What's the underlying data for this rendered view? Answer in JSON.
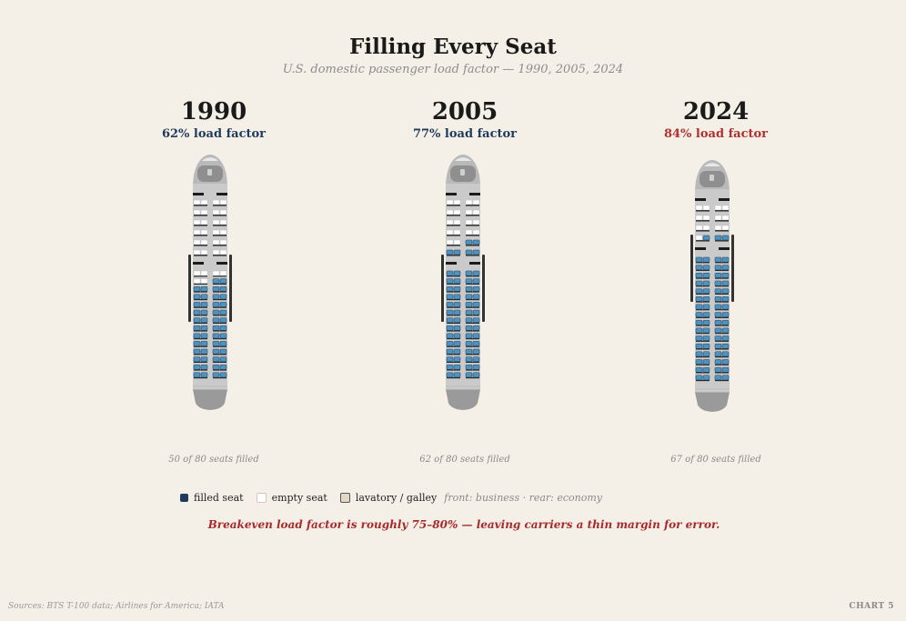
{
  "chart_data": {
    "type": "seat-map",
    "title": "Filling Every Seat",
    "subtitle": "U.S. domestic passenger load factor — 1990, 2005, 2024",
    "unit": "load factor (%)",
    "panels": [
      {
        "year": "1990",
        "load_factor": 62,
        "load_label": "62% load factor",
        "seats_total": 80,
        "seats_filled": 50,
        "caption": "50 of 80 seats filled",
        "highlight": false
      },
      {
        "year": "2005",
        "load_factor": 77,
        "load_label": "77% load factor",
        "seats_total": 80,
        "seats_filled": 62,
        "caption": "62 of 80 seats filled",
        "highlight": false
      },
      {
        "year": "2024",
        "load_factor": 84,
        "load_label": "84% load factor",
        "seats_total": 80,
        "seats_filled": 67,
        "caption": "67 of 80 seats filled",
        "highlight": true
      }
    ],
    "legend": [
      {
        "key": "filled",
        "label": "filled seat"
      },
      {
        "key": "empty",
        "label": "empty seat"
      },
      {
        "key": "lav",
        "label": "lavatory / galley"
      }
    ],
    "legend_note": "front: business  ·  rear: economy",
    "callout": "Breakeven load factor is roughly 75–80% — leaving carriers a thin margin for error."
  },
  "colors": {
    "filled": "#4f93bd",
    "filled_dark": "#1f3a5c",
    "empty": "#ffffff",
    "lav": "#e3d9c6",
    "fuselage": "#cacaca",
    "accent": "#b03030"
  },
  "footer": {
    "source": "Sources: BTS T-100 data; Airlines for America; IATA",
    "chart_number": "CHART 5"
  }
}
